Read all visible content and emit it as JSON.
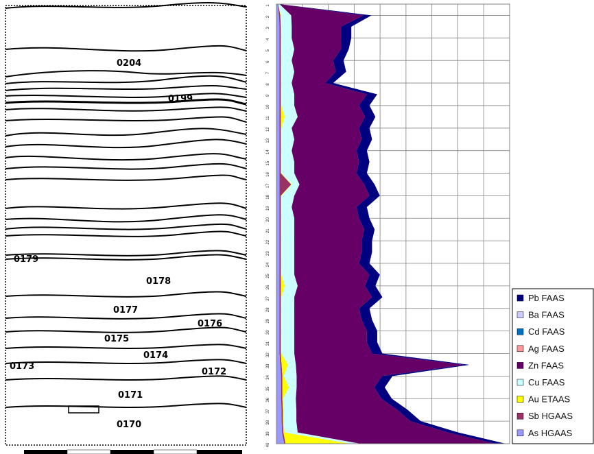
{
  "section": {
    "layer_labels": [
      "0204",
      "0199",
      "0179",
      "0178",
      "0177",
      "0176",
      "0175",
      "0174",
      "0173",
      "0172",
      "0171",
      "0170"
    ]
  },
  "chart_data": {
    "type": "area",
    "orientation": "depth-down stacked area",
    "x": [
      "1",
      "2",
      "3",
      "4",
      "5",
      "6",
      "7",
      "8",
      "9",
      "10",
      "11",
      "12",
      "13",
      "14",
      "15",
      "16",
      "17",
      "18",
      "19",
      "20",
      "21",
      "22",
      "23",
      "24",
      "25",
      "26",
      "27",
      "28",
      "29",
      "30",
      "31",
      "32",
      "33",
      "34",
      "35",
      "36",
      "37",
      "38",
      "39",
      "40"
    ],
    "xlim": [
      0,
      9
    ],
    "grid": true,
    "legend_position": "right-bottom",
    "series": [
      {
        "name": "As HGAAS",
        "color": "#9999ff",
        "values": [
          0.05,
          0.1,
          0.12,
          0.12,
          0.12,
          0.12,
          0.12,
          0.12,
          0.12,
          0.12,
          0.12,
          0.12,
          0.12,
          0.12,
          0.12,
          0.12,
          0.12,
          0.12,
          0.12,
          0.12,
          0.12,
          0.12,
          0.12,
          0.12,
          0.12,
          0.12,
          0.12,
          0.12,
          0.12,
          0.12,
          0.12,
          0.12,
          0.15,
          0.18,
          0.18,
          0.18,
          0.2,
          0.2,
          0.22,
          0.3
        ]
      },
      {
        "name": "Sb HGAAS",
        "color": "#993366",
        "values": [
          0.02,
          0.05,
          0.05,
          0.05,
          0.05,
          0.05,
          0.05,
          0.05,
          0.05,
          0.05,
          0.05,
          0.05,
          0.05,
          0.05,
          0.05,
          0.05,
          0.45,
          0.05,
          0.05,
          0.05,
          0.05,
          0.05,
          0.05,
          0.05,
          0.05,
          0.05,
          0.05,
          0.05,
          0.05,
          0.05,
          0.05,
          0.05,
          0.05,
          0.05,
          0.05,
          0.05,
          0.05,
          0.05,
          0.05,
          0.05
        ]
      },
      {
        "name": "Au ETAAS",
        "color": "#ffff00",
        "values": [
          0.0,
          0.02,
          0.02,
          0.02,
          0.02,
          0.02,
          0.02,
          0.02,
          0.02,
          0.02,
          0.15,
          0.02,
          0.02,
          0.02,
          0.02,
          0.02,
          0.02,
          0.02,
          0.02,
          0.02,
          0.02,
          0.02,
          0.02,
          0.02,
          0.02,
          0.15,
          0.02,
          0.02,
          0.02,
          0.02,
          0.02,
          0.02,
          0.25,
          0.05,
          0.25,
          0.02,
          0.02,
          0.02,
          0.05,
          2.5
        ]
      },
      {
        "name": "Cu FAAS",
        "color": "#ccffff",
        "values": [
          0.05,
          0.4,
          0.4,
          0.4,
          0.5,
          0.4,
          0.5,
          0.4,
          0.5,
          0.5,
          0.5,
          0.4,
          0.5,
          0.4,
          0.5,
          0.5,
          0.3,
          0.5,
          0.4,
          0.5,
          0.5,
          0.5,
          0.5,
          0.5,
          0.5,
          0.5,
          0.5,
          0.5,
          0.5,
          0.5,
          0.5,
          0.5,
          0.3,
          0.5,
          0.3,
          0.5,
          0.5,
          0.5,
          0.5,
          0.4
        ]
      },
      {
        "name": "Zn FAAS",
        "color": "#660066",
        "values": [
          0.0,
          2.8,
          1.9,
          1.9,
          1.8,
          1.6,
          1.6,
          1.3,
          2.8,
          2.5,
          2.6,
          2.6,
          2.6,
          2.5,
          2.5,
          2.4,
          2.5,
          2.9,
          2.5,
          2.5,
          2.7,
          2.6,
          2.6,
          2.5,
          2.9,
          2.6,
          3.0,
          2.5,
          2.6,
          2.8,
          2.8,
          3.0,
          6.5,
          3.3,
          3.0,
          3.3,
          3.9,
          4.4,
          5.8,
          5.2
        ]
      },
      {
        "name": "Ag FAAS",
        "color": "#ff9999",
        "values": [
          0,
          0,
          0,
          0,
          0,
          0,
          0,
          0,
          0,
          0,
          0,
          0,
          0,
          0,
          0,
          0,
          0,
          0,
          0,
          0,
          0,
          0,
          0,
          0,
          0,
          0,
          0,
          0,
          0,
          0,
          0,
          0,
          0,
          0,
          0,
          0,
          0,
          0,
          0,
          0
        ]
      },
      {
        "name": "Cd FAAS",
        "color": "#0070c0",
        "values": [
          0,
          0,
          0,
          0,
          0,
          0,
          0,
          0,
          0,
          0,
          0,
          0,
          0,
          0,
          0,
          0,
          0,
          0,
          0,
          0,
          0,
          0,
          0,
          0,
          0,
          0,
          0,
          0,
          0,
          0,
          0,
          0,
          0,
          0,
          0,
          0,
          0,
          0,
          0,
          0
        ]
      },
      {
        "name": "Ba FAAS",
        "color": "#ccccff",
        "values": [
          0,
          0,
          0,
          0,
          0,
          0,
          0,
          0,
          0,
          0,
          0,
          0,
          0,
          0,
          0,
          0,
          0,
          0,
          0,
          0,
          0,
          0,
          0,
          0,
          0,
          0,
          0,
          0,
          0,
          0,
          0,
          0,
          0,
          0,
          0,
          0,
          0,
          0,
          0,
          0
        ]
      },
      {
        "name": "Pb FAAS",
        "color": "#000080",
        "values": [
          0.0,
          0.3,
          0.4,
          0.4,
          0.3,
          0.4,
          0.4,
          0.3,
          0.4,
          0.4,
          0.4,
          0.4,
          0.4,
          0.4,
          0.4,
          0.4,
          0.4,
          0.4,
          0.4,
          0.4,
          0.4,
          0.4,
          0.4,
          0.4,
          0.4,
          0.4,
          0.4,
          0.4,
          0.4,
          0.4,
          0.4,
          0.4,
          0.2,
          0.4,
          0.4,
          0.4,
          0.4,
          0.4,
          0.4,
          0.4
        ]
      }
    ]
  },
  "legend": {
    "entries": [
      {
        "label": "Pb FAAS",
        "color": "#000080"
      },
      {
        "label": "Ba FAAS",
        "color": "#ccccff"
      },
      {
        "label": "Cd FAAS",
        "color": "#0070c0"
      },
      {
        "label": "Ag FAAS",
        "color": "#ff9999"
      },
      {
        "label": "Zn FAAS",
        "color": "#660066"
      },
      {
        "label": "Cu FAAS",
        "color": "#ccffff"
      },
      {
        "label": "Au ETAAS",
        "color": "#ffff00"
      },
      {
        "label": "Sb HGAAS",
        "color": "#993366"
      },
      {
        "label": "As HGAAS",
        "color": "#9999ff"
      }
    ]
  }
}
